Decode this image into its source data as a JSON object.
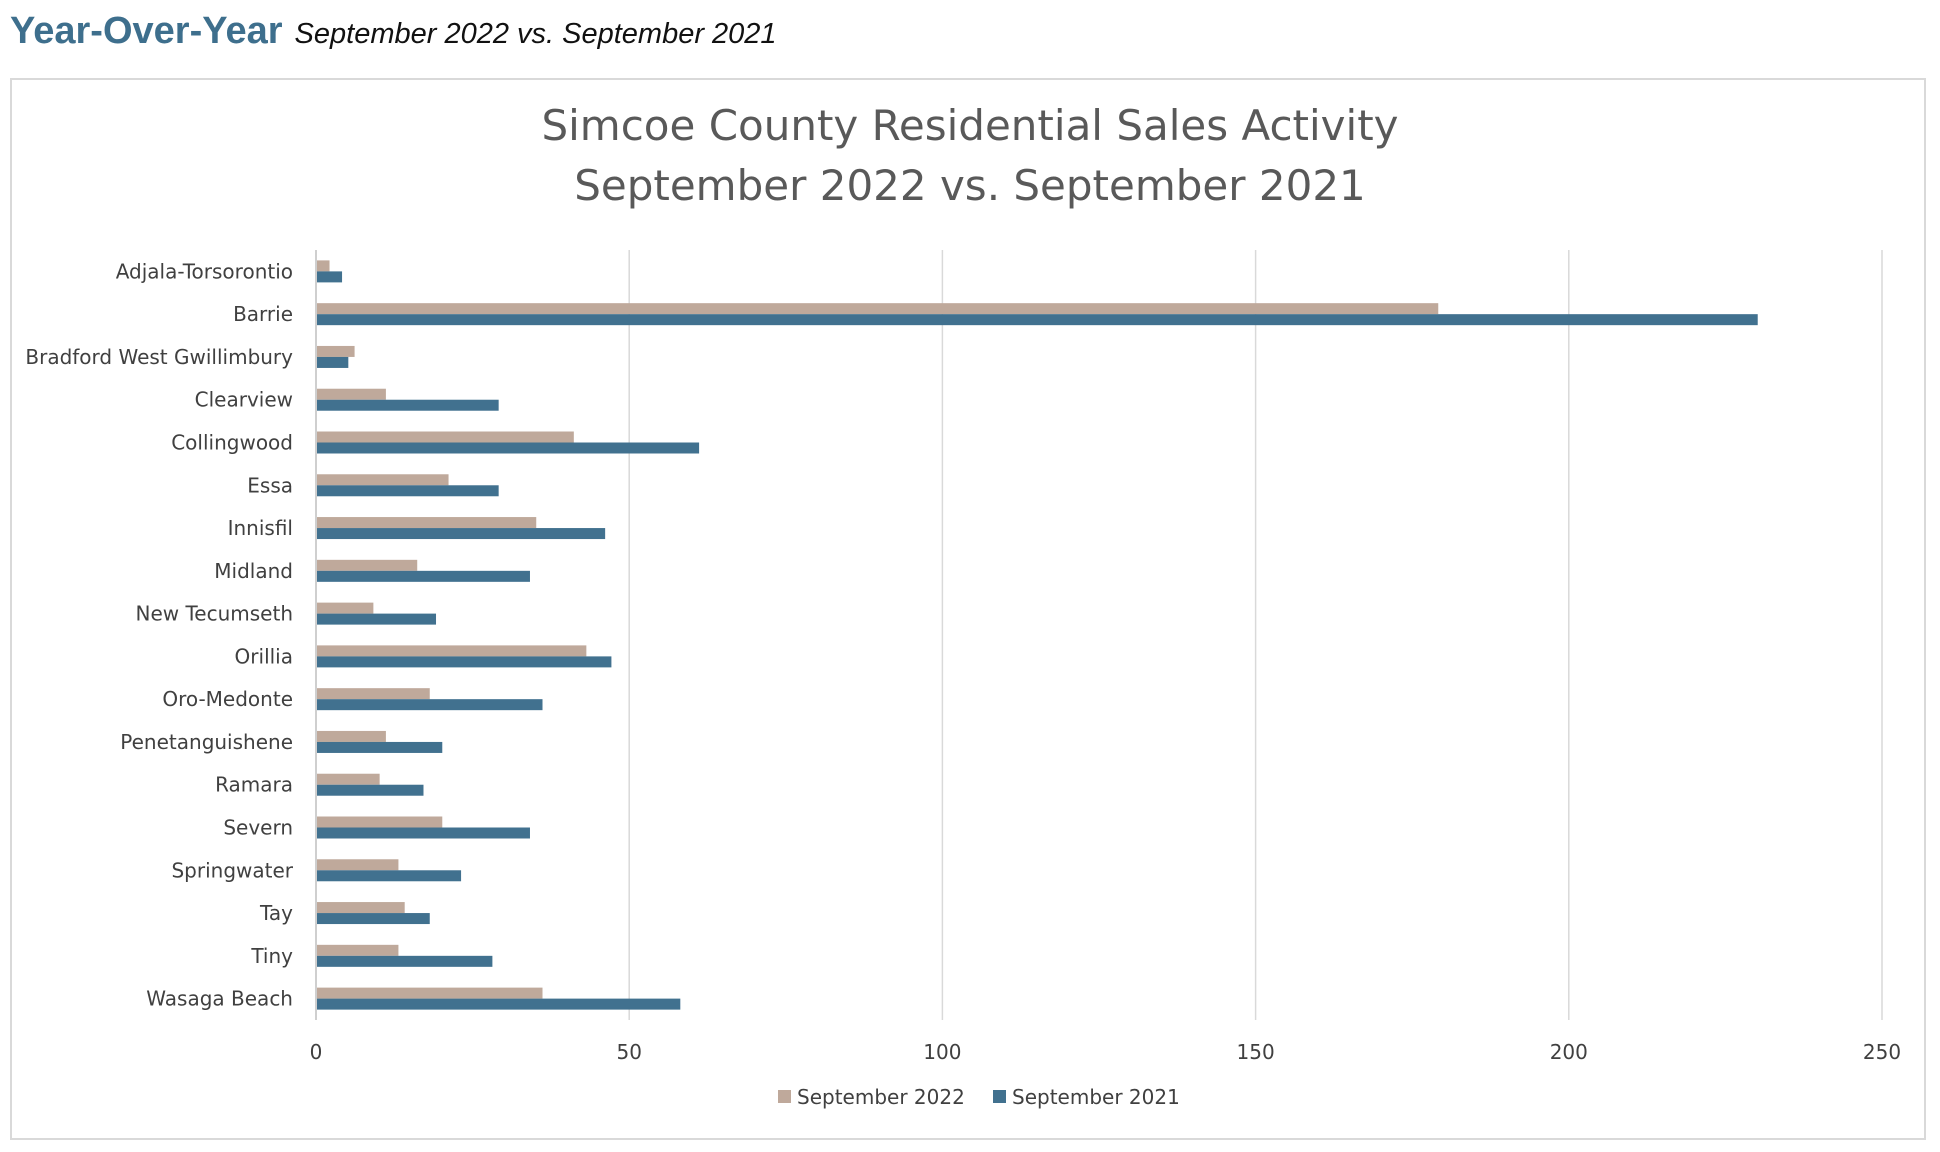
{
  "header": {
    "title": "Year-Over-Year",
    "subtitle": "September 2022 vs. September 2021"
  },
  "chart_data": {
    "type": "bar",
    "orientation": "horizontal",
    "title_lines": [
      "Simcoe County Residential Sales Activity",
      "September 2022 vs. September 2021"
    ],
    "categories": [
      "Adjala-Torsorontio",
      "Barrie",
      "Bradford West Gwillimbury",
      "Clearview",
      "Collingwood",
      "Essa",
      "Innisfil",
      "Midland",
      "New Tecumseth",
      "Orillia",
      "Oro-Medonte",
      "Penetanguishene",
      "Ramara",
      "Severn",
      "Springwater",
      "Tay",
      "Tiny",
      "Wasaga Beach"
    ],
    "series": [
      {
        "name": "September 2022",
        "color": "#bfa99b",
        "values": [
          2,
          179,
          6,
          11,
          41,
          21,
          35,
          16,
          9,
          43,
          18,
          11,
          10,
          20,
          13,
          14,
          13,
          36
        ]
      },
      {
        "name": "September 2021",
        "color": "#41718f",
        "values": [
          4,
          230,
          5,
          29,
          61,
          29,
          46,
          34,
          19,
          47,
          36,
          20,
          17,
          34,
          23,
          18,
          28,
          58
        ]
      }
    ],
    "xlim": [
      0,
      250
    ],
    "xticks": [
      "0",
      "50",
      "100",
      "150",
      "200",
      "250"
    ],
    "grid": "vertical",
    "legend_position": "bottom"
  }
}
